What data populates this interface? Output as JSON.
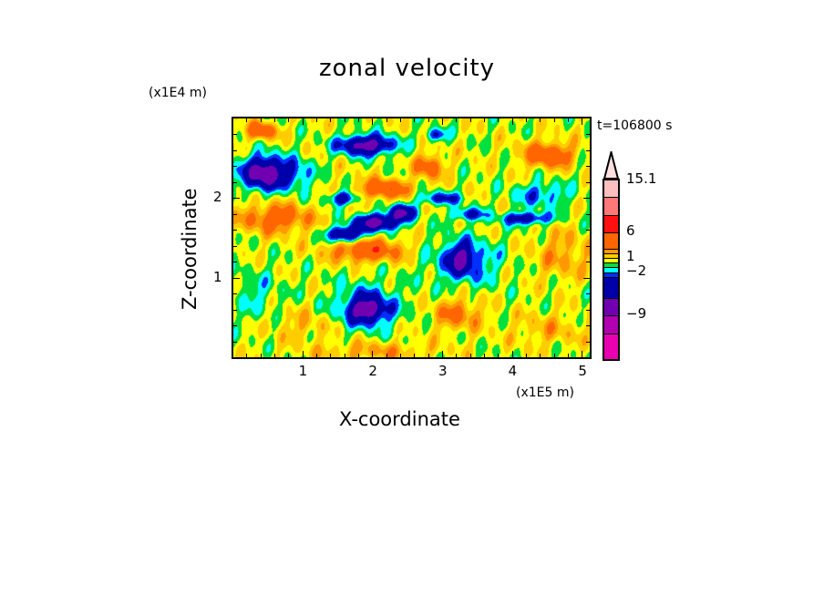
{
  "chart_data": {
    "type": "heatmap",
    "title": "zonal velocity",
    "xlabel": "X-coordinate",
    "ylabel": "Z-coordinate",
    "x_unit": "(x1E5 m)",
    "y_unit": "(x1E4 m)",
    "time_label": "t=106800 s",
    "xlim": [
      0,
      5.1
    ],
    "ylim": [
      0,
      3.0
    ],
    "xticks": [
      1,
      2,
      3,
      4,
      5
    ],
    "yticks": [
      1,
      2
    ],
    "colorbar": {
      "boundaries": [
        -15,
        -12,
        -9,
        -6,
        -3,
        -2,
        -1,
        0,
        1,
        2,
        3,
        6,
        9,
        12,
        15.1
      ],
      "colors": [
        "#e800b0",
        "#b000b0",
        "#7000b0",
        "#0000aa",
        "#0030ff",
        "#00ffff",
        "#00e040",
        "#ffff00",
        "#ffcc00",
        "#ff9900",
        "#ff6600",
        "#ff1010",
        "#ff7878",
        "#ffbebe"
      ],
      "over_color": "#ffe0e0",
      "labels": [
        {
          "value": 15.1,
          "text": "15.1"
        },
        {
          "value": 6,
          "text": "6"
        },
        {
          "value": 1,
          "text": "1"
        },
        {
          "value": -2,
          "text": "−2"
        },
        {
          "value": -9,
          "text": "−9"
        }
      ]
    },
    "features": [
      {
        "x": 0.45,
        "z": 2.32,
        "amp": -9,
        "sx": 0.32,
        "sz": 0.2
      },
      {
        "x": 1.9,
        "z": 2.67,
        "amp": -8,
        "sx": 0.38,
        "sz": 0.12
      },
      {
        "x": 1.6,
        "z": 1.55,
        "amp": -7,
        "sx": 0.25,
        "sz": 0.1
      },
      {
        "x": 2.05,
        "z": 1.7,
        "amp": -8,
        "sx": 0.3,
        "sz": 0.1
      },
      {
        "x": 2.4,
        "z": 1.82,
        "amp": -7,
        "sx": 0.18,
        "sz": 0.1
      },
      {
        "x": 1.56,
        "z": 2.0,
        "amp": -5,
        "sx": 0.2,
        "sz": 0.08
      },
      {
        "x": 3.25,
        "z": 1.25,
        "amp": -5,
        "sx": 0.18,
        "sz": 0.18
      },
      {
        "x": 3.3,
        "z": 1.2,
        "amp": -3,
        "sx": 0.5,
        "sz": 0.3
      },
      {
        "x": 1.9,
        "z": 0.6,
        "amp": -6,
        "sx": 0.25,
        "sz": 0.15
      },
      {
        "x": 1.9,
        "z": 0.65,
        "amp": -3,
        "sx": 0.5,
        "sz": 0.3
      },
      {
        "x": 2.15,
        "z": 2.12,
        "amp": 5,
        "sx": 0.35,
        "sz": 0.12
      },
      {
        "x": 0.6,
        "z": 1.75,
        "amp": 4,
        "sx": 0.5,
        "sz": 0.18
      },
      {
        "x": 1.9,
        "z": 1.35,
        "amp": 5,
        "sx": 0.5,
        "sz": 0.14
      },
      {
        "x": 2.8,
        "z": 2.4,
        "amp": 4,
        "sx": 0.2,
        "sz": 0.15
      },
      {
        "x": 4.5,
        "z": 2.55,
        "amp": 5,
        "sx": 0.35,
        "sz": 0.15
      },
      {
        "x": 2.95,
        "z": 2.0,
        "amp": -4,
        "sx": 0.3,
        "sz": 0.08
      },
      {
        "x": 3.35,
        "z": 1.8,
        "amp": -4,
        "sx": 0.25,
        "sz": 0.08
      },
      {
        "x": 4.2,
        "z": 1.75,
        "amp": -5,
        "sx": 0.35,
        "sz": 0.08
      },
      {
        "x": 0.4,
        "z": 2.85,
        "amp": 5,
        "sx": 0.2,
        "sz": 0.1
      },
      {
        "x": 3.2,
        "z": 0.55,
        "amp": 3,
        "sx": 0.35,
        "sz": 0.2
      },
      {
        "x": 2.0,
        "z": 0.08,
        "amp": 2,
        "sx": 0.8,
        "sz": 0.12
      },
      {
        "x": 4.5,
        "z": 0.35,
        "amp": 1.5,
        "sx": 0.5,
        "sz": 0.2
      },
      {
        "x": 0.95,
        "z": 2.3,
        "amp": -2.5,
        "sx": 0.2,
        "sz": 0.2
      },
      {
        "x": 2.9,
        "z": 2.8,
        "amp": -4,
        "sx": 0.15,
        "sz": 0.08
      },
      {
        "x": 4.4,
        "z": 2.05,
        "amp": -3,
        "sx": 0.4,
        "sz": 0.15
      },
      {
        "x": 0.3,
        "z": 0.8,
        "amp": -1.5,
        "sx": 0.4,
        "sz": 0.3
      },
      {
        "x": 4.7,
        "z": 1.3,
        "amp": 2,
        "sx": 0.4,
        "sz": 0.3
      },
      {
        "x": 1.0,
        "z": 0.4,
        "amp": 1.5,
        "sx": 0.4,
        "sz": 0.2
      }
    ]
  }
}
